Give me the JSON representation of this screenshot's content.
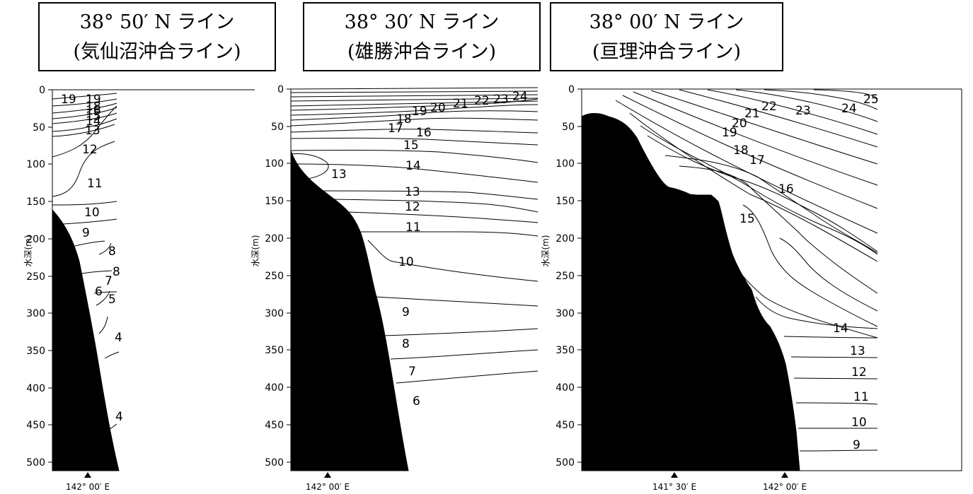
{
  "chart_data": [
    {
      "type": "contour",
      "title_line1": "38° 50′ N ライン",
      "title_line2": "(気仙沼沖合ライン)",
      "ylabel": "水深(m)",
      "ylim": [
        0,
        510
      ],
      "yticks": [
        0,
        50,
        100,
        150,
        200,
        250,
        300,
        350,
        400,
        450,
        500
      ],
      "x_marks": [
        "142° 00′ E"
      ],
      "contour_labels": [
        "19",
        "19",
        "18",
        "16",
        "15",
        "14",
        "13",
        "12",
        "11",
        "10",
        "9",
        "8",
        "8",
        "7",
        "6",
        "5",
        "4",
        "4"
      ]
    },
    {
      "type": "contour",
      "title_line1": "38° 30′ N ライン",
      "title_line2": "(雄勝沖合ライン)",
      "ylabel": "水深(m)",
      "ylim": [
        0,
        510
      ],
      "yticks": [
        0,
        50,
        100,
        150,
        200,
        250,
        300,
        350,
        400,
        450,
        500
      ],
      "x_marks": [
        "142° 00′ E"
      ],
      "contour_labels": [
        "24",
        "23",
        "22",
        "21",
        "20",
        "19",
        "18",
        "17",
        "16",
        "15",
        "14",
        "13",
        "13",
        "12",
        "11",
        "10",
        "9",
        "8",
        "7",
        "6"
      ]
    },
    {
      "type": "contour",
      "title_line1": "38° 00′ N ライン",
      "title_line2": "(亘理沖合ライン)",
      "ylabel": "水深(m)",
      "ylim": [
        0,
        510
      ],
      "yticks": [
        0,
        50,
        100,
        150,
        200,
        250,
        300,
        350,
        400,
        450,
        500
      ],
      "x_marks": [
        "141° 30′ E",
        "142° 00′ E"
      ],
      "contour_labels": [
        "25",
        "24",
        "23",
        "22",
        "21",
        "20",
        "19",
        "18",
        "17",
        "16",
        "15",
        "14",
        "13",
        "12",
        "11",
        "10",
        "9"
      ]
    }
  ]
}
